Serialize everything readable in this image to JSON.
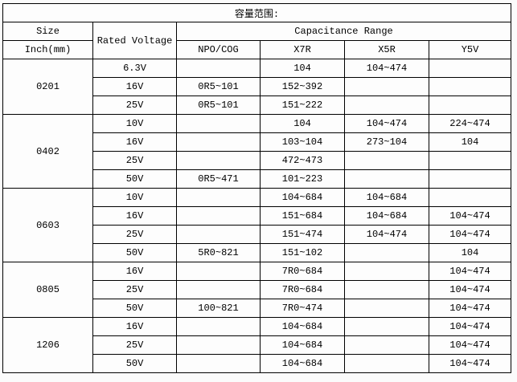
{
  "title": "容量范围:",
  "table": {
    "headers": {
      "size": "Size",
      "size_sub": "Inch(mm)",
      "rated_voltage": "Rated Voltage",
      "capacitance_range": "Capacitance Range",
      "dielectrics": [
        "NPO/COG",
        "X7R",
        "X5R",
        "Y5V"
      ]
    },
    "groups": [
      {
        "size": "0201",
        "rows": [
          {
            "voltage": "6.3V",
            "npo_cog": "",
            "x7r": "104",
            "x5r": "104~474",
            "y5v": ""
          },
          {
            "voltage": "16V",
            "npo_cog": "0R5~101",
            "x7r": "152~392",
            "x5r": "",
            "y5v": ""
          },
          {
            "voltage": "25V",
            "npo_cog": "0R5~101",
            "x7r": "151~222",
            "x5r": "",
            "y5v": ""
          }
        ]
      },
      {
        "size": "0402",
        "rows": [
          {
            "voltage": "10V",
            "npo_cog": "",
            "x7r": "104",
            "x5r": "104~474",
            "y5v": "224~474"
          },
          {
            "voltage": "16V",
            "npo_cog": "",
            "x7r": "103~104",
            "x5r": "273~104",
            "y5v": "104"
          },
          {
            "voltage": "25V",
            "npo_cog": "",
            "x7r": "472~473",
            "x5r": "",
            "y5v": ""
          },
          {
            "voltage": "50V",
            "npo_cog": "0R5~471",
            "x7r": "101~223",
            "x5r": "",
            "y5v": ""
          }
        ]
      },
      {
        "size": "0603",
        "rows": [
          {
            "voltage": "10V",
            "npo_cog": "",
            "x7r": "104~684",
            "x5r": "104~684",
            "y5v": ""
          },
          {
            "voltage": "16V",
            "npo_cog": "",
            "x7r": "151~684",
            "x5r": "104~684",
            "y5v": "104~474"
          },
          {
            "voltage": "25V",
            "npo_cog": "",
            "x7r": "151~474",
            "x5r": "104~474",
            "y5v": "104~474"
          },
          {
            "voltage": "50V",
            "npo_cog": "5R0~821",
            "x7r": "151~102",
            "x5r": "",
            "y5v": "104"
          }
        ]
      },
      {
        "size": "0805",
        "rows": [
          {
            "voltage": "16V",
            "npo_cog": "",
            "x7r": "7R0~684",
            "x5r": "",
            "y5v": "104~474"
          },
          {
            "voltage": "25V",
            "npo_cog": "",
            "x7r": "7R0~684",
            "x5r": "",
            "y5v": "104~474"
          },
          {
            "voltage": "50V",
            "npo_cog": "100~821",
            "x7r": "7R0~474",
            "x5r": "",
            "y5v": "104~474"
          }
        ]
      },
      {
        "size": "1206",
        "rows": [
          {
            "voltage": "16V",
            "npo_cog": "",
            "x7r": "104~684",
            "x5r": "",
            "y5v": "104~474"
          },
          {
            "voltage": "25V",
            "npo_cog": "",
            "x7r": "104~684",
            "x5r": "",
            "y5v": "104~474"
          },
          {
            "voltage": "50V",
            "npo_cog": "",
            "x7r": "104~684",
            "x5r": "",
            "y5v": "104~474"
          }
        ]
      }
    ]
  }
}
